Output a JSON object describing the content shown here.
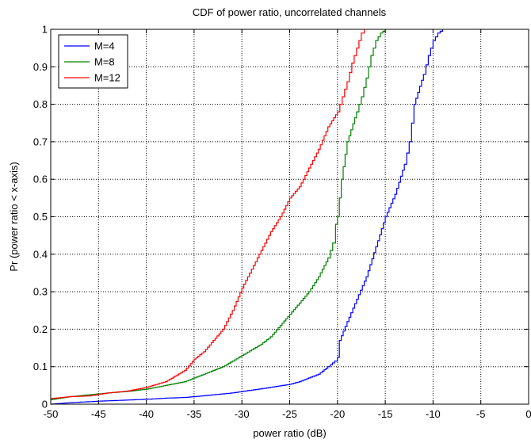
{
  "chart_data": {
    "type": "line",
    "title": "CDF of power ratio, uncorrelated channels",
    "xlabel": "power ratio (dB)",
    "ylabel": "Pr (power ratio < x-axis)",
    "xlim": [
      -50,
      0
    ],
    "ylim": [
      0,
      1
    ],
    "xticks": [
      -50,
      -45,
      -40,
      -35,
      -30,
      -25,
      -20,
      -15,
      -10,
      -5,
      0
    ],
    "xtick_labels": [
      "-50",
      "-45",
      "-40",
      "-35",
      "-30",
      "-25",
      "-20",
      "-15",
      "-10",
      "-5",
      "0"
    ],
    "yticks": [
      0,
      0.1,
      0.2,
      0.3,
      0.4,
      0.5,
      0.6,
      0.7,
      0.8,
      0.9,
      1
    ],
    "ytick_labels": [
      "0",
      "0.1",
      "0.2",
      "0.3",
      "0.4",
      "0.5",
      "0.6",
      "0.7",
      "0.8",
      "0.9",
      "1"
    ],
    "grid": true,
    "grid_style": "dotted",
    "legend_position": "top-left",
    "series": [
      {
        "name": "M=4",
        "color": "#0000ff",
        "points": [
          [
            -50,
            0.0
          ],
          [
            -48,
            0.004
          ],
          [
            -45,
            0.008
          ],
          [
            -42,
            0.011
          ],
          [
            -40,
            0.013
          ],
          [
            -38,
            0.016
          ],
          [
            -36,
            0.018
          ],
          [
            -35,
            0.02
          ],
          [
            -33,
            0.025
          ],
          [
            -31,
            0.03
          ],
          [
            -30,
            0.034
          ],
          [
            -28,
            0.041
          ],
          [
            -26,
            0.049
          ],
          [
            -25,
            0.053
          ],
          [
            -24,
            0.06
          ],
          [
            -23,
            0.07
          ],
          [
            -22,
            0.08
          ],
          [
            -21,
            0.1
          ],
          [
            -20.3,
            0.115
          ],
          [
            -20,
            0.125
          ],
          [
            -19.8,
            0.17
          ],
          [
            -19,
            0.22
          ],
          [
            -18,
            0.28
          ],
          [
            -17,
            0.34
          ],
          [
            -16,
            0.42
          ],
          [
            -15,
            0.5
          ],
          [
            -14,
            0.56
          ],
          [
            -13,
            0.64
          ],
          [
            -12.5,
            0.7
          ],
          [
            -12,
            0.8
          ],
          [
            -11,
            0.88
          ],
          [
            -10.5,
            0.93
          ],
          [
            -10,
            0.97
          ],
          [
            -9.5,
            0.99
          ],
          [
            -9,
            1.0
          ]
        ]
      },
      {
        "name": "M=8",
        "color": "#008000",
        "points": [
          [
            -50,
            0.012
          ],
          [
            -48,
            0.02
          ],
          [
            -46,
            0.025
          ],
          [
            -44,
            0.03
          ],
          [
            -42,
            0.034
          ],
          [
            -40,
            0.04
          ],
          [
            -38,
            0.05
          ],
          [
            -36,
            0.06
          ],
          [
            -34,
            0.08
          ],
          [
            -32,
            0.1
          ],
          [
            -30,
            0.13
          ],
          [
            -28,
            0.16
          ],
          [
            -27,
            0.18
          ],
          [
            -26,
            0.21
          ],
          [
            -25,
            0.24
          ],
          [
            -24,
            0.27
          ],
          [
            -23,
            0.3
          ],
          [
            -22,
            0.34
          ],
          [
            -21,
            0.39
          ],
          [
            -20.5,
            0.43
          ],
          [
            -20.2,
            0.48
          ],
          [
            -20,
            0.5
          ],
          [
            -19.6,
            0.6
          ],
          [
            -19,
            0.7
          ],
          [
            -18,
            0.78
          ],
          [
            -17.5,
            0.82
          ],
          [
            -17,
            0.87
          ],
          [
            -16.5,
            0.93
          ],
          [
            -16,
            0.97
          ],
          [
            -15.5,
            0.99
          ],
          [
            -15,
            1.0
          ]
        ]
      },
      {
        "name": "M=12",
        "color": "#ff0000",
        "points": [
          [
            -50,
            0.015
          ],
          [
            -48,
            0.02
          ],
          [
            -46,
            0.022
          ],
          [
            -44,
            0.03
          ],
          [
            -42,
            0.035
          ],
          [
            -40,
            0.045
          ],
          [
            -38,
            0.06
          ],
          [
            -36,
            0.09
          ],
          [
            -35,
            0.12
          ],
          [
            -34,
            0.14
          ],
          [
            -33,
            0.17
          ],
          [
            -32,
            0.2
          ],
          [
            -31,
            0.25
          ],
          [
            -30,
            0.31
          ],
          [
            -29,
            0.36
          ],
          [
            -28,
            0.41
          ],
          [
            -27,
            0.46
          ],
          [
            -26,
            0.5
          ],
          [
            -25,
            0.55
          ],
          [
            -24,
            0.58
          ],
          [
            -23,
            0.63
          ],
          [
            -22,
            0.68
          ],
          [
            -21,
            0.74
          ],
          [
            -20,
            0.78
          ],
          [
            -19.5,
            0.82
          ],
          [
            -19,
            0.86
          ],
          [
            -18.5,
            0.91
          ],
          [
            -18,
            0.95
          ],
          [
            -17.5,
            0.99
          ],
          [
            -17.2,
            1.0
          ]
        ]
      }
    ]
  }
}
